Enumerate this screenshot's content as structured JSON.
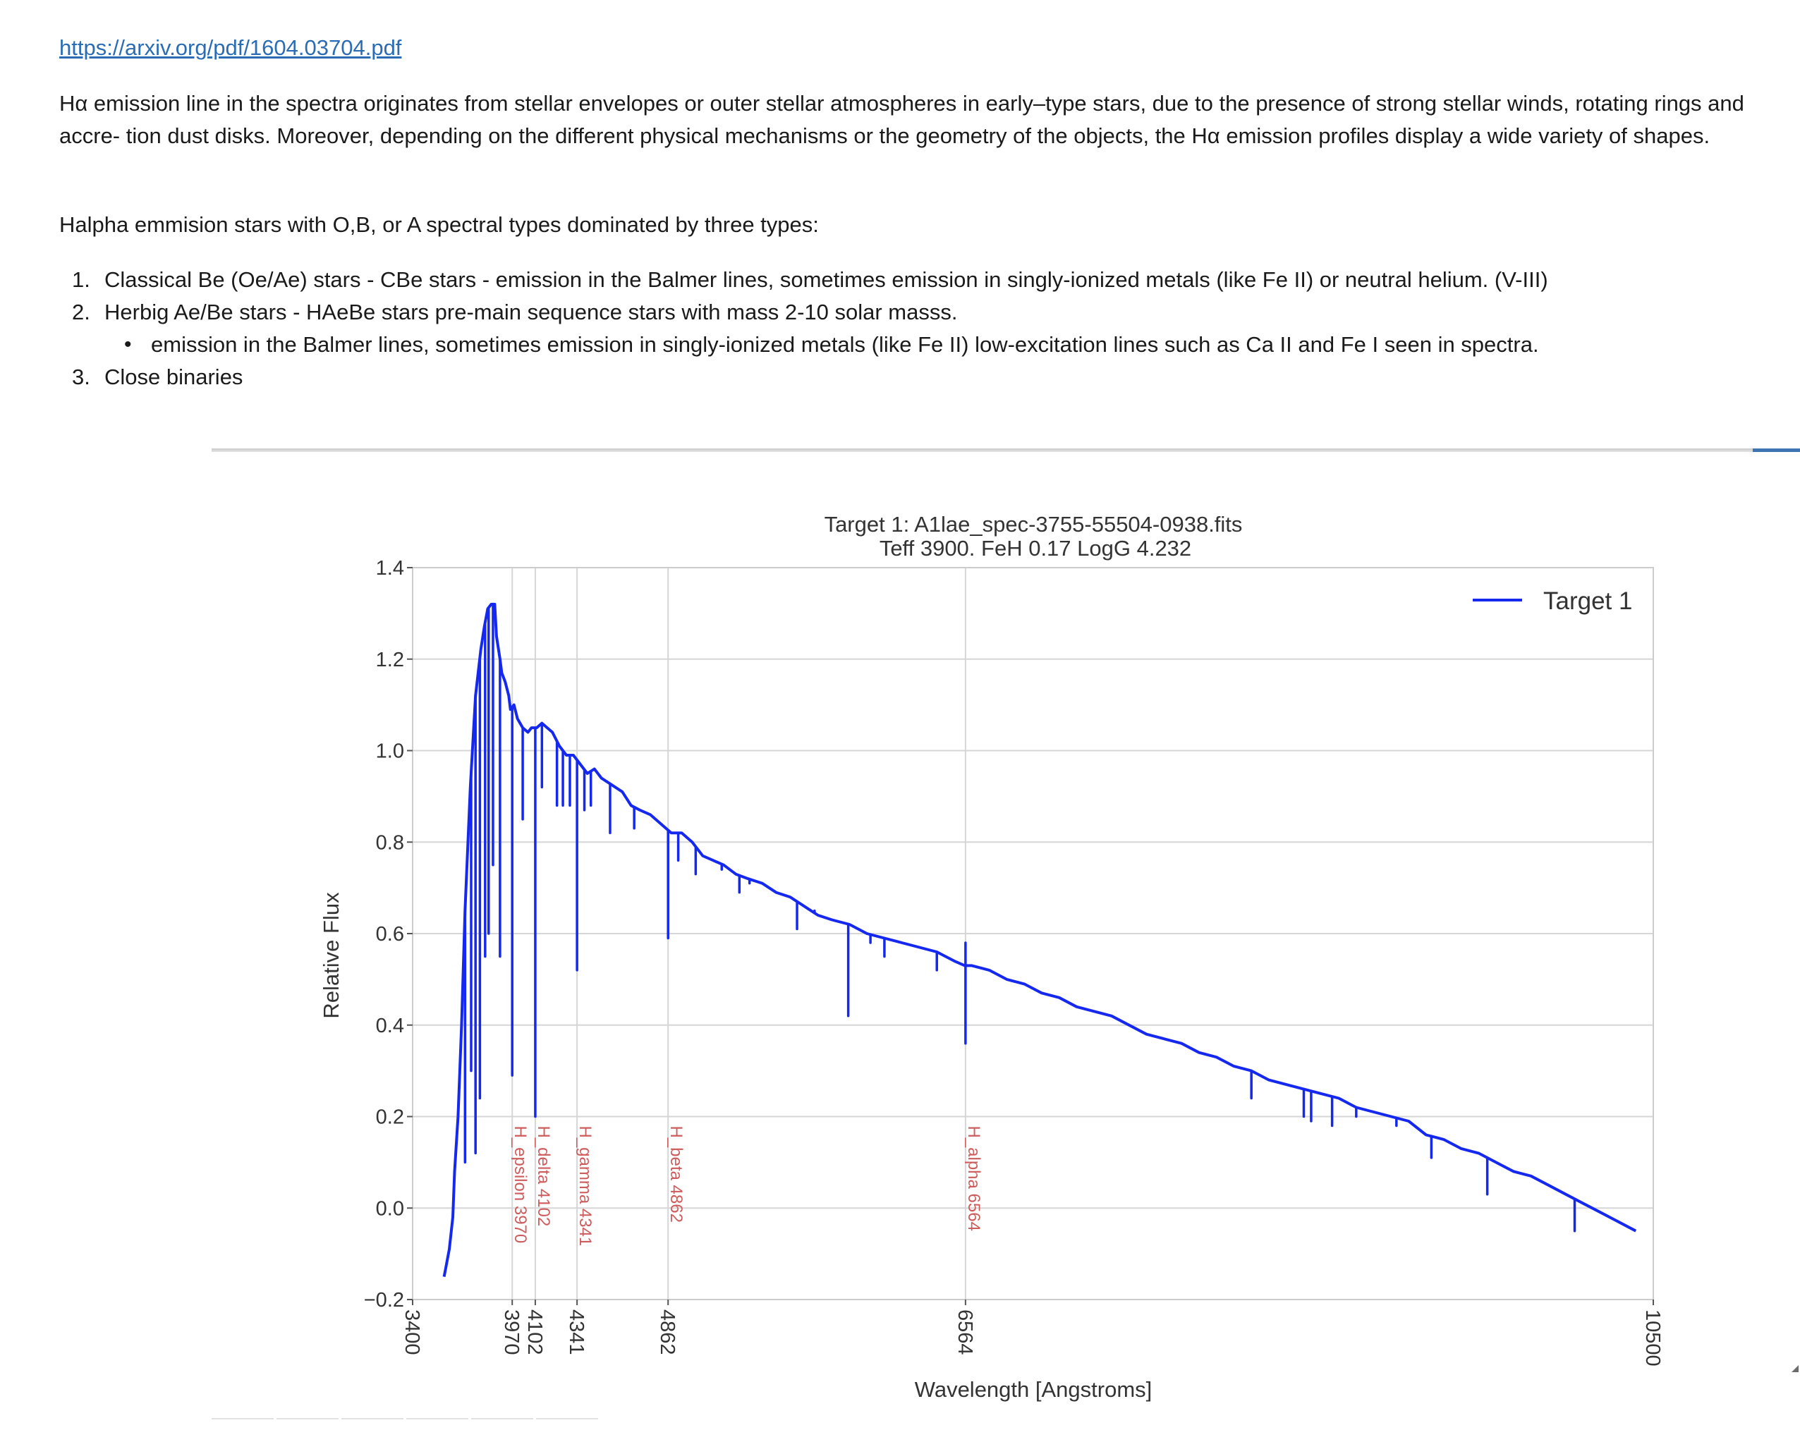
{
  "notebook": {
    "link_text": "https://arxiv.org/pdf/1604.03704.pdf",
    "paragraph": "Hα emission line in the spectra originates from stellar envelopes or outer stellar atmospheres in early–type stars, due to the presence of strong stellar winds, rotating rings and accre- tion dust disks. Moreover, depending on the different physical mechanisms or the geometry of the objects, the Hα emission profiles display a wide variety of shapes.",
    "lead": "Halpha emmision stars with O,B, or A spectral types dominated by three types:",
    "list": [
      {
        "num": "1.",
        "text": "Classical Be (Oe/Ae) stars - CBe stars - emission in the Balmer lines, sometimes emission in singly-ionized metals (like Fe II) or neutral helium. (V-III)"
      },
      {
        "num": "2.",
        "text": "Herbig Ae/Be stars - HAeBe stars pre-main sequence stars with mass 2-10 solar masss."
      },
      {
        "num": "3.",
        "text": "Close binaries"
      }
    ],
    "sub_bullet": "emission in the Balmer lines, sometimes emission in singly-ionized metals (like Fe II) low-excitation lines such as Ca II and Fe I seen in spectra.",
    "bullet_glyph": "•"
  },
  "chart_data": {
    "type": "line",
    "title_line1": "Target 1: A1lae_spec-3755-55504-0938.fits",
    "title_line2": "Teff 3900. FeH 0.17 LogG 4.232",
    "xlabel": "Wavelength [Angstroms]",
    "ylabel": "Relative Flux",
    "xlim": [
      3400,
      10500
    ],
    "ylim": [
      -0.2,
      1.4
    ],
    "x_ticks": [
      3400,
      3970,
      4102,
      4341,
      4862,
      6564,
      10500
    ],
    "y_ticks": [
      -0.2,
      0.0,
      0.2,
      0.4,
      0.6,
      0.8,
      1.0,
      1.2,
      1.4
    ],
    "y_tick_labels": [
      "−0.2",
      "0.0",
      "0.2",
      "0.4",
      "0.6",
      "0.8",
      "1.0",
      "1.2",
      "1.4"
    ],
    "grid": true,
    "legend_position": "top-right",
    "series_color": "#1428f0",
    "annotation_color": "#cd5c5c",
    "lines": [
      {
        "x": 3970,
        "label": "H_epsilon 3970"
      },
      {
        "x": 4102,
        "label": "H_delta 4102"
      },
      {
        "x": 4341,
        "label": "H_gamma 4341"
      },
      {
        "x": 4862,
        "label": "H_beta 4862"
      },
      {
        "x": 6564,
        "label": "H_alpha 6564"
      }
    ],
    "series": [
      {
        "name": "Target 1",
        "x": [
          3580,
          3590,
          3610,
          3630,
          3640,
          3660,
          3680,
          3700,
          3730,
          3760,
          3790,
          3810,
          3830,
          3850,
          3870,
          3880,
          3900,
          3910,
          3930,
          3950,
          3960,
          3980,
          4000,
          4030,
          4060,
          4080,
          4110,
          4140,
          4170,
          4200,
          4240,
          4280,
          4320,
          4360,
          4400,
          4440,
          4480,
          4520,
          4560,
          4600,
          4650,
          4700,
          4760,
          4820,
          4880,
          4940,
          5000,
          5060,
          5120,
          5180,
          5250,
          5320,
          5400,
          5480,
          5560,
          5640,
          5720,
          5800,
          5900,
          6000,
          6100,
          6200,
          6300,
          6400,
          6500,
          6560,
          6600,
          6700,
          6800,
          6900,
          7000,
          7100,
          7200,
          7300,
          7400,
          7500,
          7600,
          7700,
          7800,
          7900,
          8000,
          8100,
          8200,
          8300,
          8400,
          8500,
          8600,
          8700,
          8800,
          8900,
          9000,
          9100,
          9200,
          9300,
          9400,
          9500,
          9600,
          9700,
          9800,
          9900,
          10000,
          10100,
          10200,
          10300,
          10400
        ],
        "y": [
          -0.15,
          -0.13,
          -0.09,
          -0.02,
          0.08,
          0.2,
          0.4,
          0.65,
          0.92,
          1.12,
          1.22,
          1.27,
          1.31,
          1.32,
          1.32,
          1.25,
          1.2,
          1.17,
          1.15,
          1.12,
          1.09,
          1.1,
          1.07,
          1.05,
          1.04,
          1.05,
          1.05,
          1.06,
          1.05,
          1.04,
          1.01,
          0.99,
          0.99,
          0.97,
          0.95,
          0.96,
          0.94,
          0.93,
          0.92,
          0.91,
          0.88,
          0.87,
          0.86,
          0.84,
          0.82,
          0.82,
          0.8,
          0.77,
          0.76,
          0.75,
          0.73,
          0.72,
          0.71,
          0.69,
          0.68,
          0.66,
          0.64,
          0.63,
          0.62,
          0.6,
          0.59,
          0.58,
          0.57,
          0.56,
          0.54,
          0.53,
          0.53,
          0.52,
          0.5,
          0.49,
          0.47,
          0.46,
          0.44,
          0.43,
          0.42,
          0.4,
          0.38,
          0.37,
          0.36,
          0.34,
          0.33,
          0.31,
          0.3,
          0.28,
          0.27,
          0.26,
          0.25,
          0.24,
          0.22,
          0.21,
          0.2,
          0.19,
          0.16,
          0.15,
          0.13,
          0.12,
          0.1,
          0.08,
          0.07,
          0.05,
          0.03,
          0.01,
          -0.01,
          -0.03,
          -0.05
        ]
      }
    ],
    "absorption_dips": [
      {
        "x": 3700,
        "y": 0.1
      },
      {
        "x": 3735,
        "y": 0.3
      },
      {
        "x": 3760,
        "y": 0.12
      },
      {
        "x": 3785,
        "y": 0.24
      },
      {
        "x": 3815,
        "y": 0.55
      },
      {
        "x": 3835,
        "y": 0.6
      },
      {
        "x": 3860,
        "y": 0.75
      },
      {
        "x": 3900,
        "y": 0.55
      },
      {
        "x": 3970,
        "y": 0.29
      },
      {
        "x": 4030,
        "y": 0.85
      },
      {
        "x": 4102,
        "y": 0.2
      },
      {
        "x": 4140,
        "y": 0.92
      },
      {
        "x": 4226,
        "y": 0.88
      },
      {
        "x": 4260,
        "y": 0.88
      },
      {
        "x": 4300,
        "y": 0.88
      },
      {
        "x": 4341,
        "y": 0.52
      },
      {
        "x": 4383,
        "y": 0.87
      },
      {
        "x": 4420,
        "y": 0.88
      },
      {
        "x": 4530,
        "y": 0.82
      },
      {
        "x": 4668,
        "y": 0.83
      },
      {
        "x": 4862,
        "y": 0.59
      },
      {
        "x": 4920,
        "y": 0.76
      },
      {
        "x": 5020,
        "y": 0.73
      },
      {
        "x": 5169,
        "y": 0.74
      },
      {
        "x": 5270,
        "y": 0.69
      },
      {
        "x": 5328,
        "y": 0.71
      },
      {
        "x": 5600,
        "y": 0.61
      },
      {
        "x": 5700,
        "y": 0.65
      },
      {
        "x": 5893,
        "y": 0.42
      },
      {
        "x": 6020,
        "y": 0.58
      },
      {
        "x": 6100,
        "y": 0.55
      },
      {
        "x": 6400,
        "y": 0.52
      },
      {
        "x": 6564,
        "y": 0.36
      },
      {
        "x": 8200,
        "y": 0.24
      },
      {
        "x": 8500,
        "y": 0.2
      },
      {
        "x": 8542,
        "y": 0.19
      },
      {
        "x": 8662,
        "y": 0.18
      },
      {
        "x": 8800,
        "y": 0.2
      },
      {
        "x": 9030,
        "y": 0.18
      },
      {
        "x": 9230,
        "y": 0.11
      },
      {
        "x": 9550,
        "y": 0.03
      },
      {
        "x": 10050,
        "y": -0.05
      }
    ],
    "emission_spikes": [
      {
        "x": 6564,
        "y": 0.58
      }
    ]
  }
}
